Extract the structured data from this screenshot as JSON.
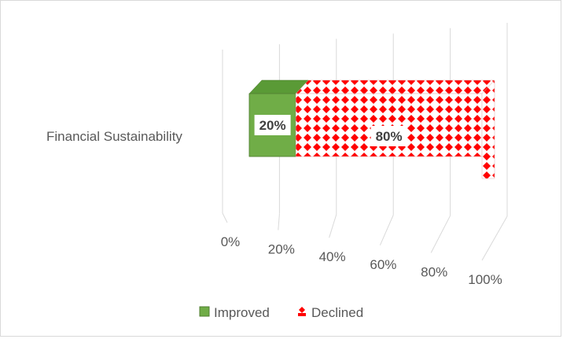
{
  "chart_data": {
    "type": "bar",
    "orientation": "horizontal",
    "stacked": "100%",
    "three_d": true,
    "categories": [
      "Financial Sustainability"
    ],
    "series": [
      {
        "name": "Improved",
        "values": [
          20
        ],
        "color": "#70ad47",
        "pattern": "solid"
      },
      {
        "name": "Declined",
        "values": [
          80
        ],
        "color": "#ff0000",
        "pattern": "red-diamond-dots"
      }
    ],
    "data_labels": [
      "20%",
      "80%"
    ],
    "x_ticks": [
      "0%",
      "20%",
      "40%",
      "60%",
      "80%",
      "100%"
    ],
    "xlim": [
      0,
      100
    ],
    "grid": true,
    "legend_position": "bottom"
  }
}
